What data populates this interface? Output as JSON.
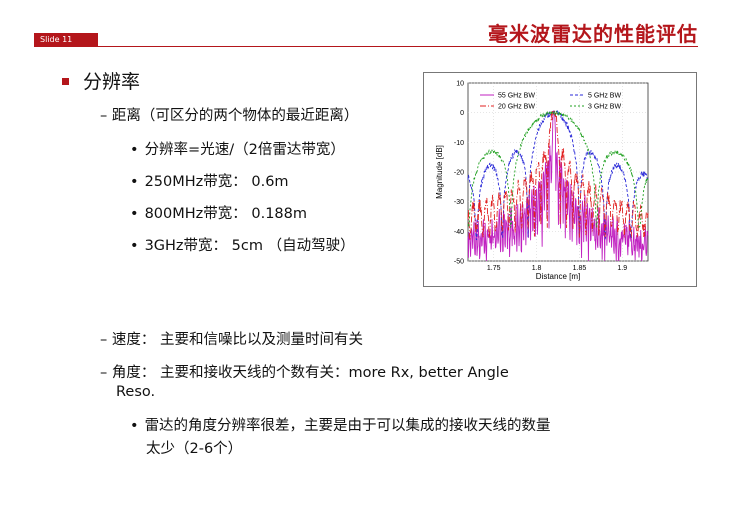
{
  "slide_label": "Slide 11",
  "title": "毫米波雷达的性能评估",
  "bullet_main": "分辨率",
  "distance": {
    "heading": "距离（可区分的两个物体的最近距离）",
    "items": [
      "分辨率=光速/（2倍雷达带宽）",
      "250MHz带宽： 0.6m",
      "800MHz带宽： 0.188m",
      "3GHz带宽： 5cm （自动驾驶）"
    ]
  },
  "speed": "速度： 主要和信噪比以及测量时间有关",
  "angle": {
    "line1": "角度： 主要和接收天线的个数有关：more Rx, better Angle",
    "line2": "Reso.",
    "sub_line1": "雷达的角度分辨率很差，主要是由于可以集成的接收天线的数量",
    "sub_line2": "太少（2-6个）"
  },
  "chart_data": {
    "type": "line",
    "xlabel": "Distance [m]",
    "ylabel": "Magnitude [dB]",
    "xlim": [
      1.72,
      1.93
    ],
    "ylim": [
      -50,
      10
    ],
    "xticks": [
      "1.75",
      "1.8",
      "1.85",
      "1.9"
    ],
    "xtick_values": [
      1.75,
      1.8,
      1.85,
      1.9
    ],
    "yticks": [
      "10",
      "0",
      "-10",
      "-20",
      "-30",
      "-40",
      "-50"
    ],
    "ytick_values": [
      10,
      0,
      -10,
      -20,
      -30,
      -40,
      -50
    ],
    "grid": true,
    "legend_position": "top",
    "series": [
      {
        "name": "55 GHz BW",
        "color": "#c020c0",
        "dash": "",
        "width_m": 0.0027,
        "noise": 10,
        "floor": -46
      },
      {
        "name": "5 GHz BW",
        "color": "#2a2ad8",
        "dash": "3,2",
        "width_m": 0.03,
        "noise": 2,
        "floor": -42
      },
      {
        "name": "20 GHz BW",
        "color": "#e02020",
        "dash": "6,2,1,2",
        "width_m": 0.0075,
        "noise": 5,
        "floor": -40
      },
      {
        "name": "3 GHz BW",
        "color": "#20a020",
        "dash": "2,2",
        "width_m": 0.05,
        "noise": 1.5,
        "floor": -38
      }
    ],
    "peak_x": 1.82
  }
}
